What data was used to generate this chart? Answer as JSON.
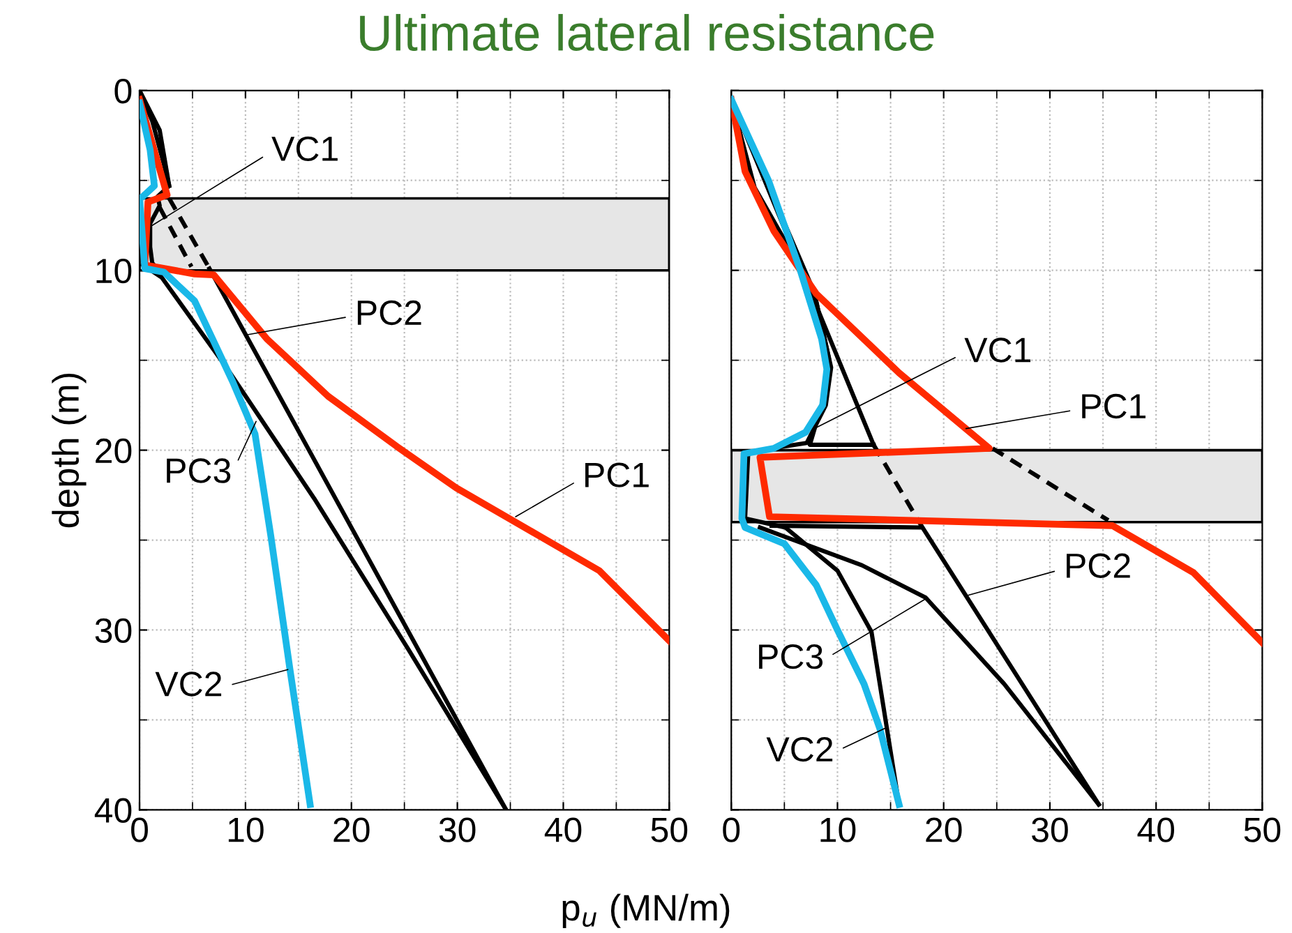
{
  "chart_data": [
    {
      "type": "line",
      "title": "Ultimate lateral resistance",
      "xlabel": "p$_{u}$ (MN/m)",
      "ylabel": "depth (m)",
      "xlim": [
        0,
        50
      ],
      "xticks": [
        0,
        10,
        20,
        30,
        40,
        50
      ],
      "ylim": [
        40,
        0
      ],
      "yticks": [
        0,
        10,
        20,
        30,
        40
      ],
      "grid": true,
      "bands": [
        {
          "axis": "y",
          "from": 6,
          "to": 10,
          "color": "#e6e6e6"
        }
      ],
      "series": [
        {
          "color": "#000000",
          "line_style": "solid",
          "x": [
            0,
            1.9,
            2.8
          ],
          "values": [
            0,
            2.2,
            5.3
          ]
        },
        {
          "color": "#000000",
          "line_style": "solid",
          "x": [
            6.6,
            34.6
          ],
          "values": [
            9.9,
            40
          ]
        },
        {
          "color": "#000000",
          "line_style": "dashed",
          "x": [
            2.8,
            6.6
          ],
          "values": [
            6.0,
            9.9
          ]
        },
        {
          "color": "#000000",
          "line_style": "dashed",
          "x": [
            1.9,
            4.9
          ],
          "values": [
            6.5,
            9.8
          ]
        },
        {
          "color": "#000000",
          "line_style": "solid",
          "x": [
            0,
            1.2,
            2.3,
            2.8,
            1.7,
            1.9,
            1.0,
            1.0,
            1.2,
            2.1
          ],
          "values": [
            0,
            1.7,
            4.1,
            5.3,
            5.9,
            6.4,
            7.4,
            8.7,
            9.6,
            10.2
          ]
        },
        {
          "color": "#000000",
          "line_style": "solid",
          "x": [
            0.3,
            2.1,
            8.2,
            16.5,
            25.4,
            34.6
          ],
          "values": [
            9.7,
            10.4,
            15.4,
            22.7,
            31.1,
            40
          ]
        },
        {
          "color": "#ff2a00",
          "line_style": "solid",
          "x": [
            0,
            2.6,
            0.8,
            0.5,
            5.2,
            7.0,
            12.0,
            17.8,
            24.3,
            29.9,
            43.4,
            50
          ],
          "values": [
            0.5,
            5.8,
            6.2,
            9.7,
            10.2,
            10.25,
            13.8,
            17.0,
            19.8,
            22.1,
            26.7,
            30.6
          ]
        },
        {
          "color": "#1ab8e8",
          "line_style": "solid",
          "x": [
            0,
            1.0,
            1.4,
            0.3,
            0,
            0.5,
            2.3,
            5.2,
            8.8,
            10.9,
            12.4,
            14.2,
            16.1
          ],
          "values": [
            0.7,
            3.3,
            5.3,
            5.9,
            6.0,
            9.9,
            10.1,
            11.7,
            16.2,
            19.1,
            24.8,
            32.2,
            39.7
          ]
        }
      ],
      "annotations": [
        {
          "text": "VC1",
          "x": 1.2,
          "y": 7.5
        },
        {
          "text": "PC2",
          "x": 10,
          "y": 13.6
        },
        {
          "text": "PC3",
          "x": 11.0,
          "y": 18.4
        },
        {
          "text": "PC1",
          "x": 35.5,
          "y": 23.7
        },
        {
          "text": "VC2",
          "x": 14.0,
          "y": 32.2
        }
      ]
    },
    {
      "type": "line",
      "xlim": [
        0,
        50
      ],
      "xticks": [
        0,
        10,
        20,
        30,
        40,
        50
      ],
      "ylim": [
        40,
        0
      ],
      "yticks": [
        0,
        10,
        20,
        30,
        40
      ],
      "grid": true,
      "tick_labels": "x",
      "bands": [
        {
          "axis": "y",
          "from": 20,
          "to": 24,
          "color": "#e6e6e6"
        }
      ],
      "series": [
        {
          "color": "#000000",
          "line_style": "solid",
          "x": [
            0,
            13.4
          ],
          "values": [
            0.5,
            19.7
          ]
        },
        {
          "color": "#000000",
          "line_style": "solid",
          "x": [
            17.9,
            34.6
          ],
          "values": [
            24.2,
            39.7
          ]
        },
        {
          "color": "#000000",
          "line_style": "dashed",
          "x": [
            13.4,
            17.9
          ],
          "values": [
            19.7,
            24.2
          ]
        },
        {
          "color": "#000000",
          "line_style": "dashed",
          "x": [
            24.6,
            35.5
          ],
          "values": [
            19.9,
            23.9
          ]
        },
        {
          "color": "#000000",
          "line_style": "solid",
          "x": [
            0,
            2.2,
            7.8,
            9.2,
            8.5,
            7.4,
            13.4
          ],
          "values": [
            0.5,
            5.4,
            11.2,
            14.9,
            17.5,
            19.7,
            19.7
          ]
        },
        {
          "color": "#000000",
          "line_style": "solid",
          "x": [
            3.8,
            17.9
          ],
          "values": [
            24.2,
            24.3
          ]
        },
        {
          "color": "#000000",
          "line_style": "solid",
          "x": [
            2.7,
            12.3,
            18.3,
            25.7,
            34.6
          ],
          "values": [
            24.3,
            26.4,
            28.2,
            33.0,
            39.7
          ]
        },
        {
          "color": "#000000",
          "line_style": "solid",
          "x": [
            0,
            7.8,
            9.4,
            8.9,
            7.1,
            1.6,
            1.3,
            5.1,
            10.0,
            13.2,
            15.8
          ],
          "values": [
            0.5,
            11.2,
            15.4,
            17.5,
            19.6,
            20.1,
            23.8,
            24.3,
            26.7,
            30.1,
            39.7
          ]
        },
        {
          "color": "#ff2a00",
          "line_style": "solid",
          "x": [
            0,
            1.3,
            4.0,
            8.0,
            15.8,
            24.3,
            2.7,
            3.6,
            35.9,
            43.5,
            50
          ],
          "values": [
            0.5,
            4.5,
            7.8,
            11.3,
            15.7,
            19.9,
            20.4,
            23.7,
            24.2,
            26.8,
            30.7
          ]
        },
        {
          "color": "#1ab8e8",
          "line_style": "solid",
          "x": [
            0,
            3.5,
            6.5,
            8.5,
            9.0,
            8.6,
            7.0,
            4.0,
            1.2,
            1.0,
            1.3,
            5.0,
            8.0,
            10.0,
            12.5,
            14.0,
            15.8
          ],
          "values": [
            0.5,
            5.0,
            10.0,
            13.8,
            15.5,
            17.5,
            19.0,
            19.9,
            20.2,
            23.8,
            24.3,
            25.2,
            27.5,
            30.0,
            33.0,
            35.5,
            39.7
          ]
        }
      ],
      "annotations": [
        {
          "text": "VC1",
          "x": 7.8,
          "y": 18.8
        },
        {
          "text": "PC1",
          "x": 22.1,
          "y": 18.8
        },
        {
          "text": "PC2",
          "x": 22.1,
          "y": 28.1
        },
        {
          "text": "PC3",
          "x": 18.5,
          "y": 28.2
        },
        {
          "text": "VC2",
          "x": 14.7,
          "y": 35.4
        }
      ]
    }
  ]
}
